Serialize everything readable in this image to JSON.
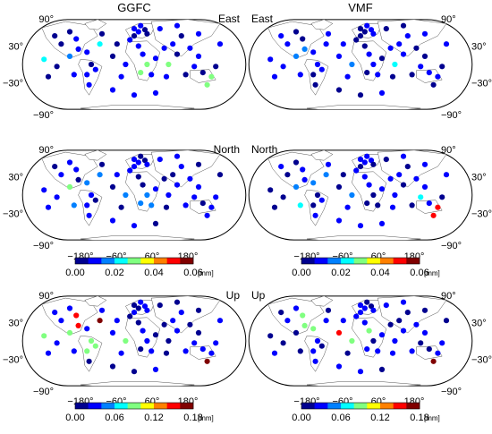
{
  "columns": [
    {
      "title": "GGFC"
    },
    {
      "title": "VMF"
    }
  ],
  "panels": [
    {
      "component": "East",
      "label_side": "right"
    },
    {
      "component": "East",
      "label_side": "left"
    },
    {
      "component": "North",
      "label_side": "right"
    },
    {
      "component": "North",
      "label_side": "left"
    },
    {
      "component": "Up",
      "label_side": "right"
    },
    {
      "component": "Up",
      "label_side": "left"
    }
  ],
  "lat_labels": {
    "top": "90°",
    "p30": "30°",
    "m30": "−30°",
    "bottom": "−90°"
  },
  "lon_labels": [
    "−180°",
    "−60°",
    "60°",
    "180°"
  ],
  "colorbars": [
    {
      "ticks": [
        "0.00",
        "0.02",
        "0.04",
        "0.06"
      ],
      "unit": "[mm]"
    },
    {
      "ticks": [
        "0.00",
        "0.06",
        "0.12",
        "0.18"
      ],
      "unit": "[mm]"
    }
  ],
  "colormap": [
    "#00008f",
    "#0000ff",
    "#0080ff",
    "#00ffff",
    "#80ff80",
    "#ffff00",
    "#ff8000",
    "#ff0000",
    "#800000"
  ],
  "land_color": "#ffffff",
  "station_values": {
    "r0c0": [
      [
        0.035,
        0.4,
        0.2
      ],
      [
        0.056,
        0.45,
        0.35
      ],
      [
        0.3,
        0.3,
        0.35
      ],
      [
        0.5,
        0.5,
        0.1
      ],
      [
        0.56,
        0.55,
        0.55
      ],
      [
        0.63,
        0.6,
        0.1
      ],
      [
        0.7,
        0.5,
        0.45
      ],
      [
        0.8,
        0.65,
        0.5
      ],
      [
        0.2,
        0.6,
        0.15
      ],
      [
        0.15,
        0.4,
        0.3
      ],
      [
        0.1,
        0.7,
        0.6
      ],
      [
        0.16,
        0.9,
        0.25
      ],
      [
        0.05,
        1.0,
        0.8
      ]
    ],
    "r0c1": [
      [
        0.3,
        0.3,
        0.15
      ],
      [
        0.6,
        0.7,
        0.15
      ],
      [
        0.7,
        0.5,
        0.35
      ],
      [
        0.04,
        0.05,
        0.3
      ],
      [
        0.12,
        0.1,
        0.55
      ],
      [
        0.5,
        0.5,
        0.2
      ],
      [
        0.2,
        0.4,
        0.25
      ],
      [
        0.08,
        0.9,
        0.8
      ]
    ],
    "r1c0": [
      [
        0.33,
        0.33,
        0.2
      ],
      [
        0.5,
        0.5,
        0.2
      ],
      [
        0.55,
        0.55,
        0.3
      ],
      [
        0.77,
        0.5,
        0.1
      ],
      [
        0.56,
        0.7,
        0.4
      ],
      [
        0.84,
        0.8,
        0.2
      ],
      [
        0.2,
        0.6,
        0.25
      ],
      [
        0.2,
        0.45,
        0.5
      ]
    ],
    "r1c1": [
      [
        0.33,
        0.33,
        0.2
      ],
      [
        0.5,
        0.5,
        0.2
      ],
      [
        0.77,
        0.5,
        0.35
      ],
      [
        0.8,
        0.65,
        0.9
      ],
      [
        0.56,
        0.7,
        0.5
      ],
      [
        0.2,
        0.6,
        0.35
      ],
      [
        0.18,
        0.4,
        0.3
      ]
    ],
    "r2c0": [
      [
        0.24,
        0.3,
        0.9
      ],
      [
        0.34,
        0.35,
        0.95
      ],
      [
        0.48,
        0.45,
        0.5
      ],
      [
        0.84,
        0.75,
        0.95
      ],
      [
        0.58,
        0.7,
        0.5
      ],
      [
        0.1,
        0.42,
        0.45
      ],
      [
        0.12,
        0.9,
        0.7
      ],
      [
        0.16,
        0.46,
        0.45
      ],
      [
        0.31,
        0.55,
        0.55
      ]
    ],
    "r2c1": [
      [
        0.24,
        0.3,
        0.5
      ],
      [
        0.3,
        0.4,
        0.5
      ],
      [
        0.42,
        0.45,
        0.9
      ],
      [
        0.5,
        0.45,
        0.5
      ],
      [
        0.84,
        0.75,
        0.95
      ],
      [
        0.58,
        0.7,
        0.5
      ],
      [
        0.12,
        0.9,
        0.45
      ]
    ]
  }
}
